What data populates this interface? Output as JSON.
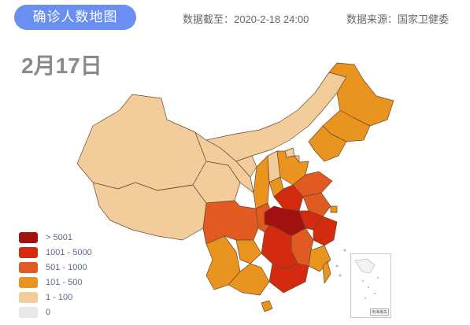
{
  "header": {
    "title": "确诊人数地图",
    "cutoff": "数据截至：2020-2-18 24:00",
    "source": "数据来源：国家卫健委"
  },
  "date_label": "2月17日",
  "colors": {
    "gt5001": "#a31010",
    "r1001_5000": "#d42a0f",
    "r501_1000": "#e05a22",
    "r101_500": "#e8941f",
    "r1_100": "#f2cc9b",
    "zero": "#e8e8e8",
    "border": "#6b4a2a"
  },
  "legend": [
    {
      "label": "> 5001",
      "color": "#a31010"
    },
    {
      "label": "1001 - 5000",
      "color": "#d42a0f"
    },
    {
      "label": "501 - 1000",
      "color": "#e05a22"
    },
    {
      "label": "101 - 500",
      "color": "#e8941f"
    },
    {
      "label": "1 - 100",
      "color": "#f2cc9b"
    },
    {
      "label": "0",
      "color": "#e8e8e8"
    }
  ],
  "inset_caption": "南海诸岛"
}
